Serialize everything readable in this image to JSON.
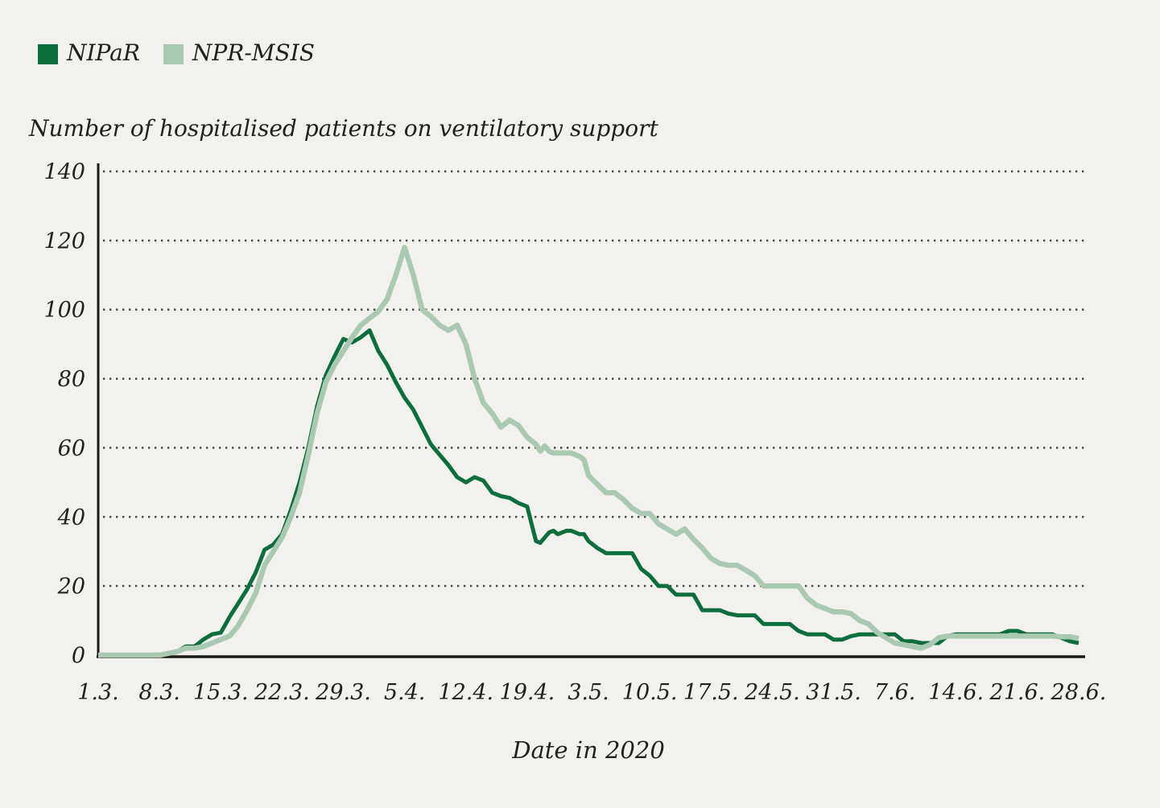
{
  "chart": {
    "title": "Number of hospitalised patients on ventilatory support",
    "x_axis_title": "Date in 2020"
  },
  "legend": {
    "items": [
      {
        "label": "NIPaR",
        "color": "#0d6e3d"
      },
      {
        "label": "NPR-MSIS",
        "color": "#a9cab1"
      }
    ]
  },
  "colors": {
    "background": "#f2f1ed",
    "axis": "#1b1a17",
    "grid_dots": "#454340",
    "text": "#23211f",
    "nipar_line": "#0d6e3d",
    "nprmsis_line": "#a9cab1"
  },
  "chart_data": {
    "type": "line",
    "title": "Number of hospitalised patients on ventilatory support",
    "xlabel": "Date in 2020",
    "ylabel": "",
    "ylim": [
      0,
      140
    ],
    "ytick_values": [
      0,
      20,
      40,
      60,
      80,
      100,
      120,
      140
    ],
    "xtick_labels": [
      "1.3.",
      "8.3.",
      "15.3.",
      "22.3.",
      "29.3.",
      "5.4.",
      "12.4.",
      "19.4.",
      "3.5.",
      "10.5.",
      "17.5.",
      "24.5.",
      "31.5.",
      "7.6.",
      "14.6.",
      "21.6.",
      "28.6."
    ],
    "xtick_day_offsets": [
      0,
      7,
      14,
      21,
      28,
      35,
      42,
      49,
      63,
      70,
      77,
      84,
      91,
      98,
      105,
      112,
      119
    ],
    "grid": "horizontal dotted",
    "legend_position": "top-left",
    "x_unit": "day (1.3.2020 - 28.6.2020, daily values)",
    "series": [
      {
        "name": "NIPaR",
        "color": "#0d6e3d",
        "values": [
          0,
          0,
          0,
          0,
          0,
          0,
          0,
          0,
          0.5,
          1,
          2.5,
          2.5,
          4.5,
          6,
          6.5,
          11,
          15,
          19,
          24,
          30.5,
          32,
          35,
          42,
          50,
          60,
          72,
          81,
          86.5,
          91.5,
          90.5,
          92,
          94,
          88,
          84,
          79,
          74.5,
          71,
          66,
          61,
          58,
          55,
          51.5,
          50,
          51.5,
          50.5,
          47,
          46,
          45.5,
          44,
          43,
          38,
          33,
          32.5,
          34,
          35.5,
          36,
          35,
          35.5,
          36,
          36,
          35.5,
          35,
          35,
          33,
          31,
          29.5,
          29.5,
          29.5,
          29.5,
          25,
          23,
          20,
          20,
          17.5,
          17.5,
          17.5,
          13,
          13,
          13,
          12,
          11.5,
          11.5,
          11.5,
          9,
          9,
          9,
          9,
          7,
          6,
          6,
          6,
          4.5,
          4.5,
          5.5,
          6,
          6,
          6,
          6,
          6,
          4,
          4,
          3.5,
          3.5,
          3.5,
          5.5,
          6,
          6,
          6,
          6,
          6,
          6,
          7,
          7,
          6,
          6,
          6,
          6,
          5,
          4,
          3.5
        ]
      },
      {
        "name": "NPR-MSIS",
        "color": "#a9cab1",
        "values": [
          0,
          0,
          0,
          0,
          0,
          0,
          0,
          0,
          0.5,
          1,
          2,
          2,
          2.5,
          3.5,
          4.5,
          5.5,
          8.5,
          13,
          18,
          26,
          30,
          34,
          40,
          47,
          58,
          70,
          79,
          84,
          88,
          92,
          95.5,
          97.5,
          99.5,
          103,
          110,
          118,
          110,
          100,
          98,
          95.5,
          94,
          95.5,
          90,
          80,
          73,
          70,
          66,
          68,
          66.5,
          63,
          62,
          61,
          59,
          60.5,
          59,
          58.5,
          58.5,
          58.5,
          58.5,
          58.5,
          58,
          57.5,
          56.5,
          52,
          49.5,
          47,
          47,
          45,
          42.5,
          41,
          41,
          38,
          36.5,
          35,
          36.5,
          33.5,
          31,
          28,
          26.5,
          26,
          26,
          24.5,
          23,
          20,
          20,
          20,
          20,
          20,
          16.5,
          14.5,
          13.5,
          12.5,
          12.5,
          12,
          10,
          9,
          6.5,
          5,
          3.5,
          3,
          2.5,
          2,
          3,
          5,
          5.5,
          5.5,
          5.5,
          5.5,
          5.5,
          5.5,
          5.5,
          5.5,
          5.5,
          5.5,
          5.5,
          5.5,
          5.5,
          5.3,
          5.3,
          4.8
        ]
      }
    ]
  }
}
